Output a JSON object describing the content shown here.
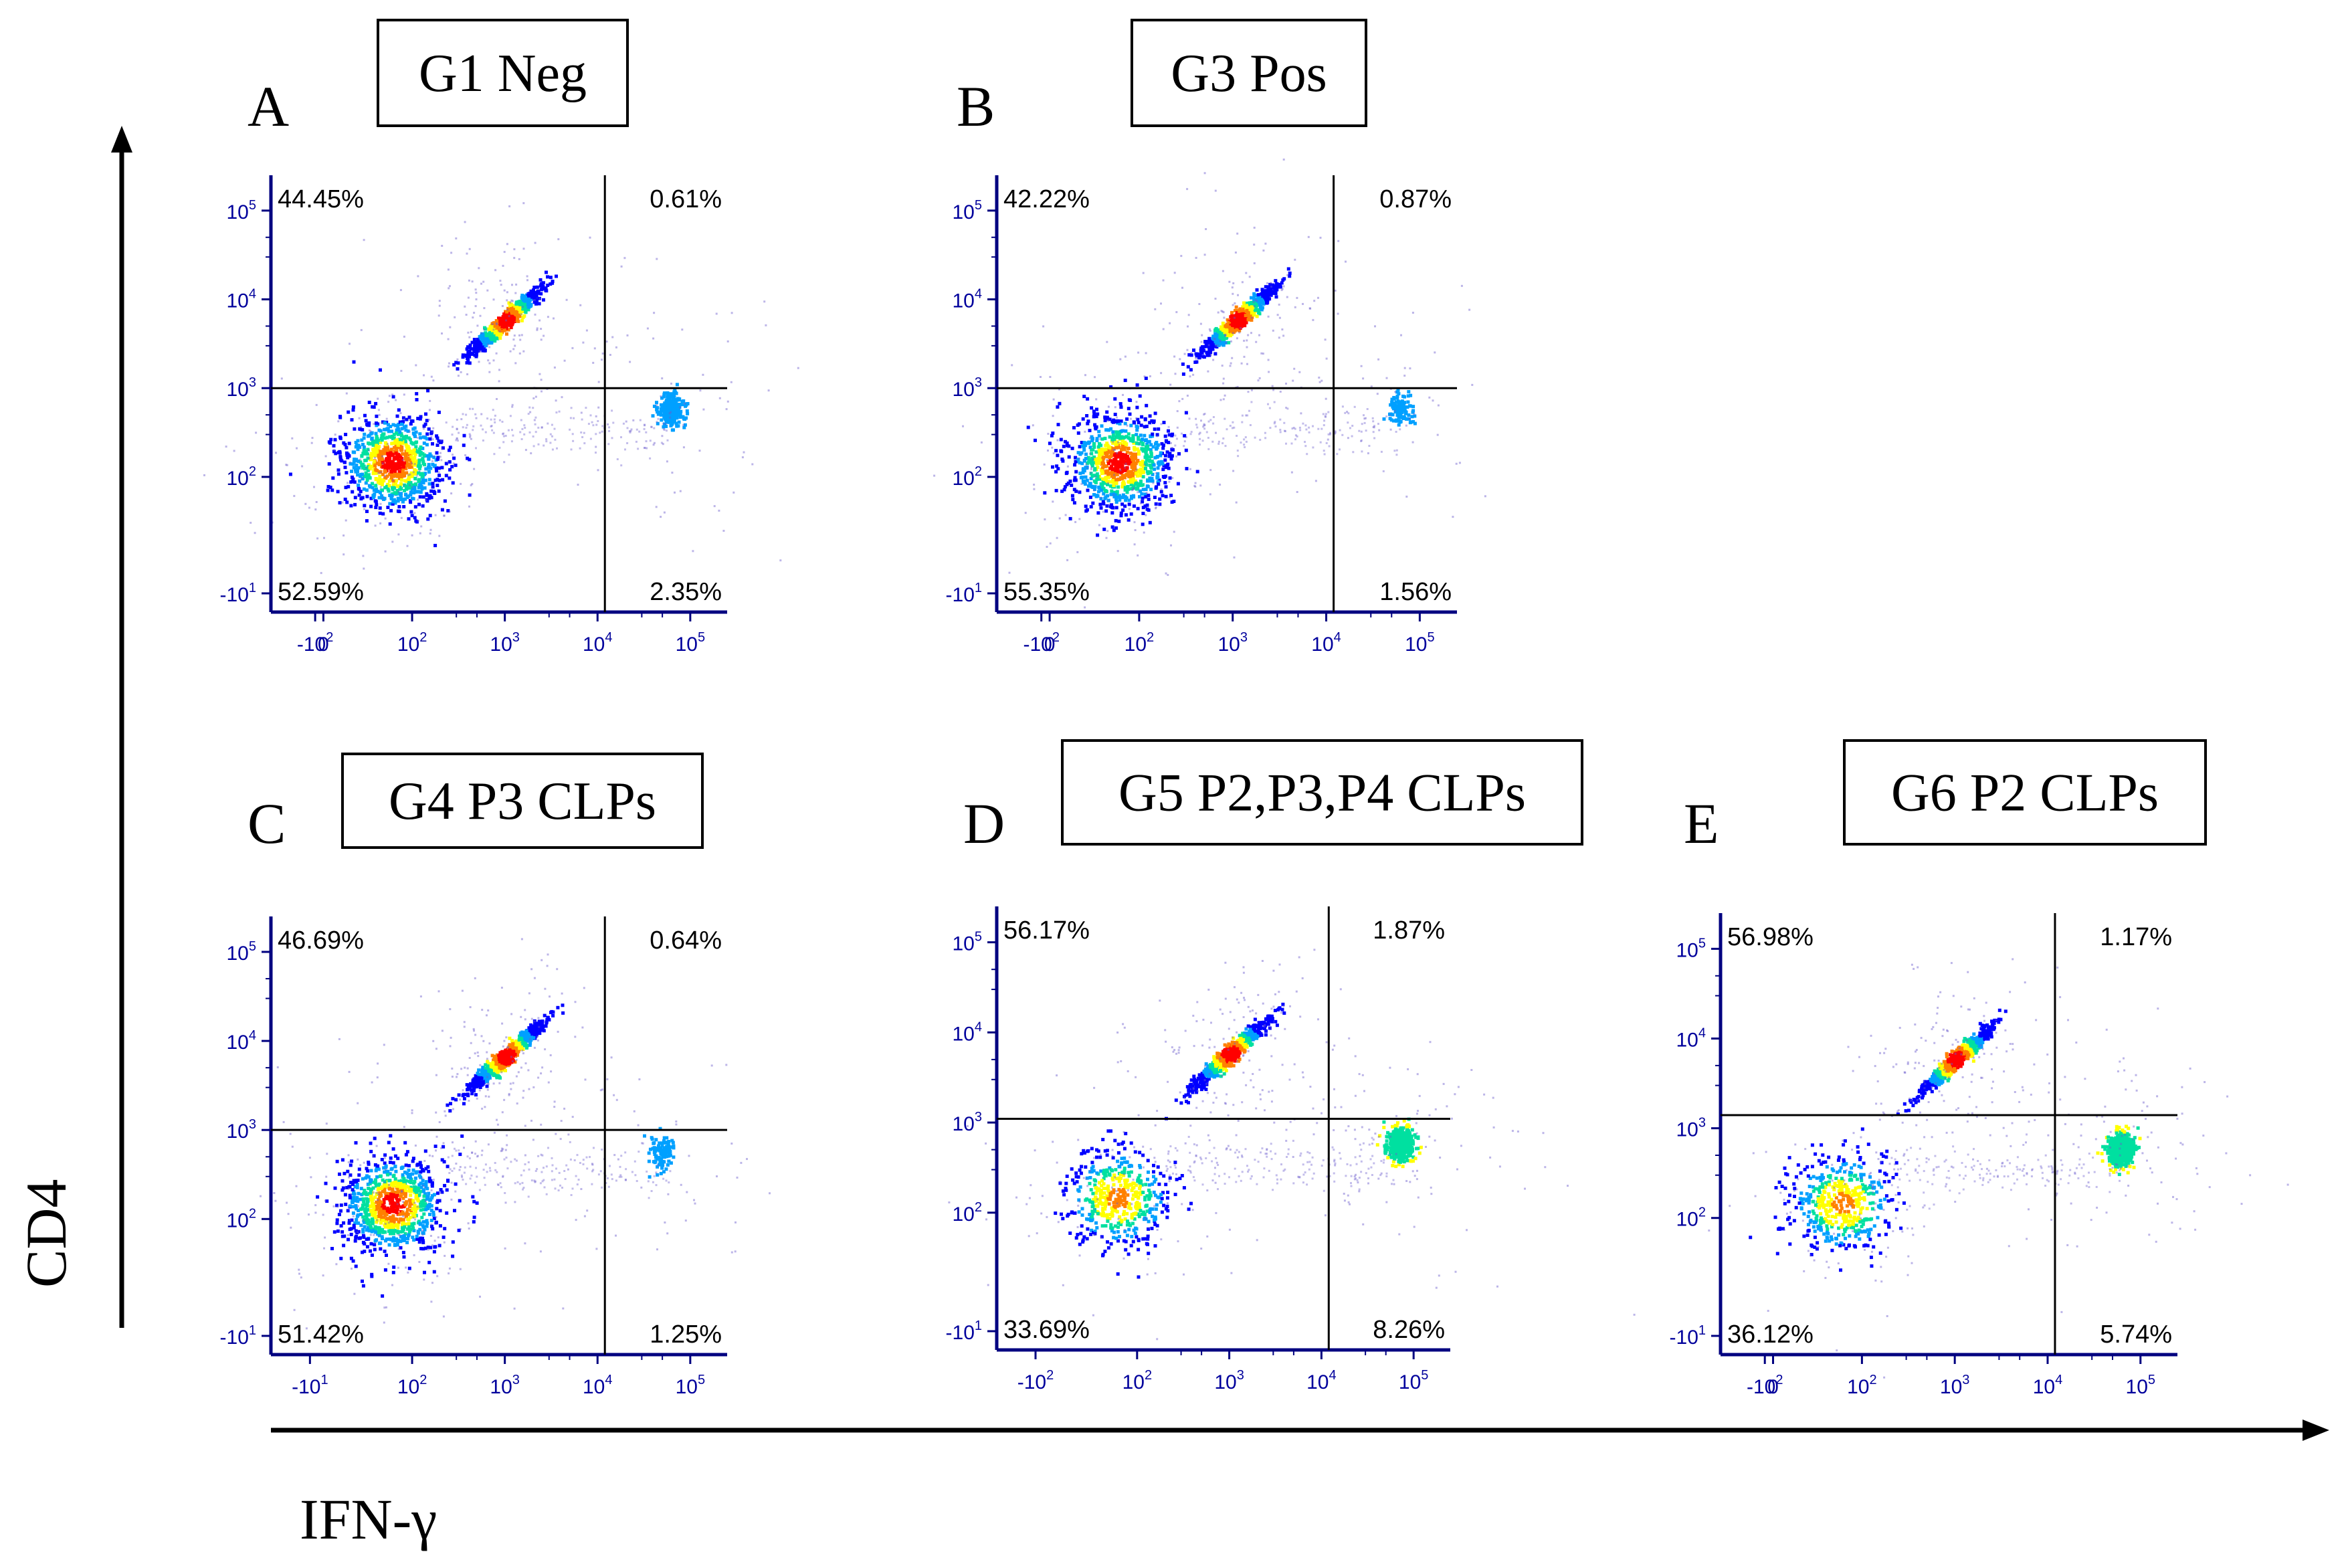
{
  "figure": {
    "y_axis_label": "CD4",
    "x_axis_label": "IFN-γ"
  },
  "colors": {
    "axis": "#000080",
    "tick_label": "#00009C",
    "gate_line": "#000000",
    "density": [
      "#0000FF",
      "#00A0FF",
      "#00E0A0",
      "#FFFF00",
      "#FF8000",
      "#FF0000"
    ]
  },
  "chart_data": [
    {
      "type": "scatter",
      "panel_letter": "A",
      "title": "G1 Neg",
      "xlabel": "IFN-γ",
      "ylabel": "CD4",
      "x_ticks": [
        "-10",
        "0",
        "10",
        "10",
        "10",
        "10"
      ],
      "x_tick_exps": [
        "2",
        "",
        "2",
        "3",
        "4",
        "5"
      ],
      "y_ticks": [
        "10",
        "10",
        "10",
        "10",
        "-10"
      ],
      "y_tick_exps": [
        "5",
        "4",
        "3",
        "2",
        "1"
      ],
      "quadrant_gate": {
        "x": 12000,
        "y": 1000
      },
      "quadrants": {
        "upper_left": "44.45%",
        "upper_right": "0.61%",
        "lower_left": "52.59%",
        "lower_right": "2.35%"
      },
      "populations": [
        {
          "name": "CD4-neg IFN-neg",
          "x": 60,
          "y": 150,
          "level": "high"
        },
        {
          "name": "CD4-pos IFN-neg",
          "x": 1000,
          "y": 6000,
          "level": "high"
        },
        {
          "name": "CD4-neg IFN-pos",
          "x": 60000,
          "y": 600,
          "level": "low"
        }
      ]
    },
    {
      "type": "scatter",
      "panel_letter": "B",
      "title": "G3 Pos",
      "xlabel": "IFN-γ",
      "ylabel": "CD4",
      "x_ticks": [
        "-10",
        "0",
        "10",
        "10",
        "10",
        "10"
      ],
      "x_tick_exps": [
        "2",
        "",
        "2",
        "3",
        "4",
        "5"
      ],
      "y_ticks": [
        "10",
        "10",
        "10",
        "10",
        "-10"
      ],
      "y_tick_exps": [
        "5",
        "4",
        "3",
        "2",
        "1"
      ],
      "quadrant_gate": {
        "x": 12000,
        "y": 1000
      },
      "quadrants": {
        "upper_left": "42.22%",
        "upper_right": "0.87%",
        "lower_left": "55.35%",
        "lower_right": "1.56%"
      },
      "populations": [
        {
          "name": "CD4-neg IFN-neg",
          "x": 60,
          "y": 150,
          "level": "high"
        },
        {
          "name": "CD4-pos IFN-neg",
          "x": 1100,
          "y": 6000,
          "level": "high"
        },
        {
          "name": "CD4-neg IFN-pos",
          "x": 60000,
          "y": 600,
          "level": "very_low"
        }
      ]
    },
    {
      "type": "scatter",
      "panel_letter": "C",
      "title": "G4 P3 CLPs",
      "xlabel": "IFN-γ",
      "ylabel": "CD4",
      "x_ticks": [
        "-10",
        "10",
        "10",
        "10",
        "10"
      ],
      "x_tick_exps": [
        "1",
        "2",
        "3",
        "4",
        "5"
      ],
      "y_ticks": [
        "10",
        "10",
        "10",
        "10",
        "-10"
      ],
      "y_tick_exps": [
        "5",
        "4",
        "3",
        "2",
        "1"
      ],
      "quadrant_gate": {
        "x": 12000,
        "y": 1000
      },
      "quadrants": {
        "upper_left": "46.69%",
        "upper_right": "0.64%",
        "lower_left": "51.42%",
        "lower_right": "1.25%"
      },
      "populations": [
        {
          "name": "CD4-neg IFN-neg",
          "x": 60,
          "y": 150,
          "level": "high"
        },
        {
          "name": "CD4-pos IFN-neg",
          "x": 1000,
          "y": 7000,
          "level": "high"
        },
        {
          "name": "CD4-neg IFN-pos",
          "x": 50000,
          "y": 600,
          "level": "very_low"
        }
      ]
    },
    {
      "type": "scatter",
      "panel_letter": "D",
      "title": "G5 P2,P3,P4 CLPs",
      "xlabel": "IFN-γ",
      "ylabel": "CD4",
      "x_ticks": [
        "-10",
        "10",
        "10",
        "10",
        "10"
      ],
      "x_tick_exps": [
        "2",
        "2",
        "3",
        "4",
        "5"
      ],
      "y_ticks": [
        "10",
        "10",
        "10",
        "10",
        "-10"
      ],
      "y_tick_exps": [
        "5",
        "4",
        "3",
        "2",
        "1"
      ],
      "quadrant_gate": {
        "x": 12000,
        "y": 1100
      },
      "quadrants": {
        "upper_left": "56.17%",
        "upper_right": "1.87%",
        "lower_left": "33.69%",
        "lower_right": "8.26%"
      },
      "populations": [
        {
          "name": "CD4-neg IFN-neg",
          "x": 60,
          "y": 150,
          "level": "medium"
        },
        {
          "name": "CD4-pos IFN-neg",
          "x": 1000,
          "y": 6000,
          "level": "high"
        },
        {
          "name": "CD4-neg IFN-pos",
          "x": 70000,
          "y": 600,
          "level": "medium"
        }
      ]
    },
    {
      "type": "scatter",
      "panel_letter": "E",
      "title": "G6 P2 CLPs",
      "xlabel": "IFN-γ",
      "ylabel": "CD4",
      "x_ticks": [
        "-10",
        "0",
        "10",
        "10",
        "10",
        "10"
      ],
      "x_tick_exps": [
        "2",
        "",
        "2",
        "3",
        "4",
        "5"
      ],
      "y_ticks": [
        "10",
        "10",
        "10",
        "10",
        "-10"
      ],
      "y_tick_exps": [
        "5",
        "4",
        "3",
        "2",
        "1"
      ],
      "quadrant_gate": {
        "x": 12000,
        "y": 1400
      },
      "quadrants": {
        "upper_left": "56.98%",
        "upper_right": "1.17%",
        "lower_left": "36.12%",
        "lower_right": "5.74%"
      },
      "populations": [
        {
          "name": "CD4-neg IFN-neg",
          "x": 60,
          "y": 150,
          "level": "medium"
        },
        {
          "name": "CD4-pos IFN-neg",
          "x": 1000,
          "y": 6000,
          "level": "high"
        },
        {
          "name": "CD4-neg IFN-pos",
          "x": 60000,
          "y": 600,
          "level": "medium"
        }
      ]
    }
  ]
}
